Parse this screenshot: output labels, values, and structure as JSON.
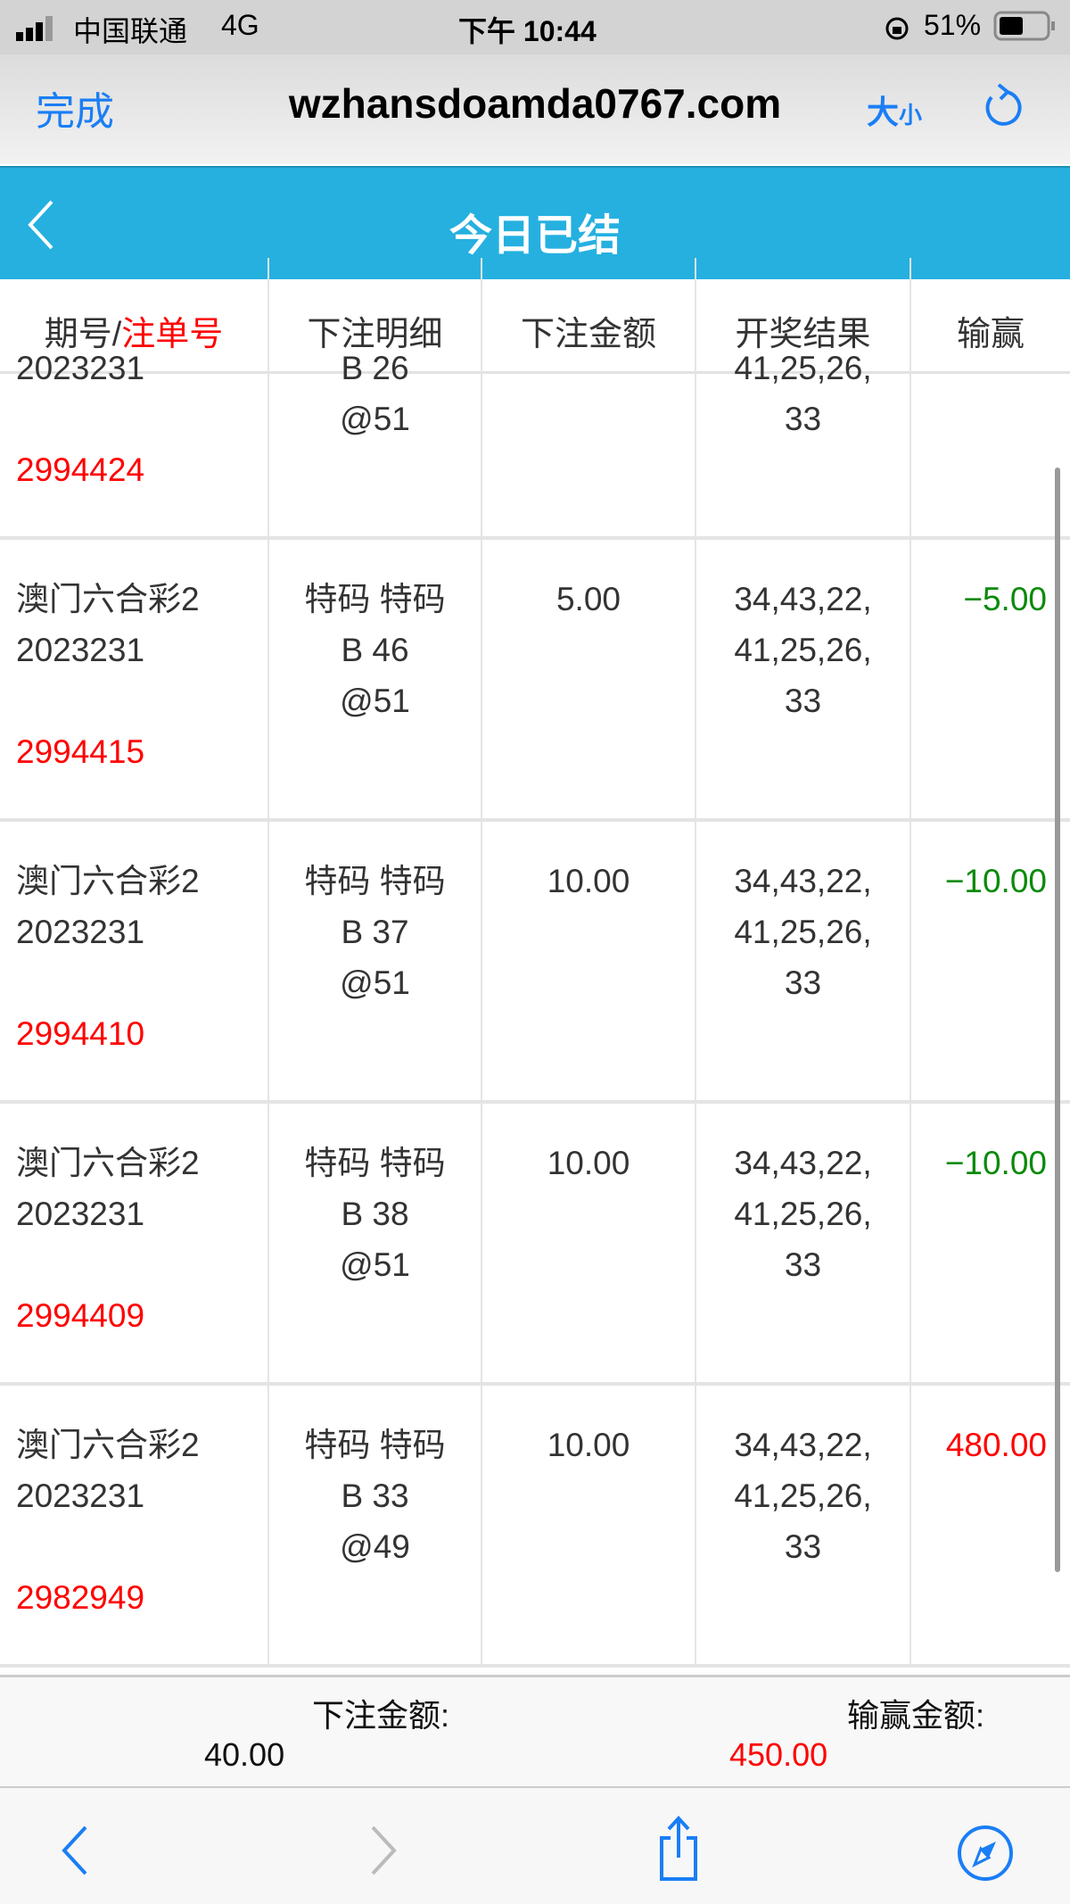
{
  "status_bar": {
    "carrier": "中国联通",
    "network": "4G",
    "time": "下午 10:44",
    "battery": "51%"
  },
  "browser": {
    "done_label": "完成",
    "url": "wzhansdoamda0767.com",
    "text_size_big": "大",
    "text_size_small": "小"
  },
  "header": {
    "title": "今日已结"
  },
  "table": {
    "columns": {
      "period": "期号/",
      "order": "注单号",
      "detail": "下注明细",
      "amount": "下注金额",
      "result": "开奖结果",
      "winloss": "输赢"
    },
    "rows": [
      {
        "lottery": "",
        "period": "2023231",
        "order": "2994424",
        "detail1": "",
        "detail2": "B 26",
        "odds": "@51",
        "amount": "",
        "res1": "",
        "res2": "41,25,26,",
        "res3": "33",
        "winloss": "",
        "wl_color": "green"
      },
      {
        "lottery": "澳门六合彩2",
        "period": "2023231",
        "order": "2994415",
        "detail1": "特码 特码",
        "detail2": "B 46",
        "odds": "@51",
        "amount": "5.00",
        "res1": "34,43,22,",
        "res2": "41,25,26,",
        "res3": "33",
        "winloss": "−5.00",
        "wl_color": "green"
      },
      {
        "lottery": "澳门六合彩2",
        "period": "2023231",
        "order": "2994410",
        "detail1": "特码 特码",
        "detail2": "B 37",
        "odds": "@51",
        "amount": "10.00",
        "res1": "34,43,22,",
        "res2": "41,25,26,",
        "res3": "33",
        "winloss": "−10.00",
        "wl_color": "green"
      },
      {
        "lottery": "澳门六合彩2",
        "period": "2023231",
        "order": "2994409",
        "detail1": "特码 特码",
        "detail2": "B 38",
        "odds": "@51",
        "amount": "10.00",
        "res1": "34,43,22,",
        "res2": "41,25,26,",
        "res3": "33",
        "winloss": "−10.00",
        "wl_color": "green"
      },
      {
        "lottery": "澳门六合彩2",
        "period": "2023231",
        "order": "2982949",
        "detail1": "特码 特码",
        "detail2": "B 33",
        "odds": "@49",
        "amount": "10.00",
        "res1": "34,43,22,",
        "res2": "41,25,26,",
        "res3": "33",
        "winloss": "480.00",
        "wl_color": "red"
      }
    ]
  },
  "summary": {
    "bet_label": "下注金额:",
    "bet_value": "40.00",
    "winloss_label": "输赢金额:",
    "winloss_value": "450.00"
  },
  "colors": {
    "accent": "#25b0e0",
    "ios_blue": "#1a7ef5",
    "loss": "#0a8a0a",
    "win": "#ff0000"
  },
  "icons": [
    "signal-icon",
    "orientation-lock-icon",
    "battery-icon",
    "reload-icon",
    "back-chevron-icon",
    "forward-chevron-icon",
    "share-icon",
    "compass-icon"
  ]
}
